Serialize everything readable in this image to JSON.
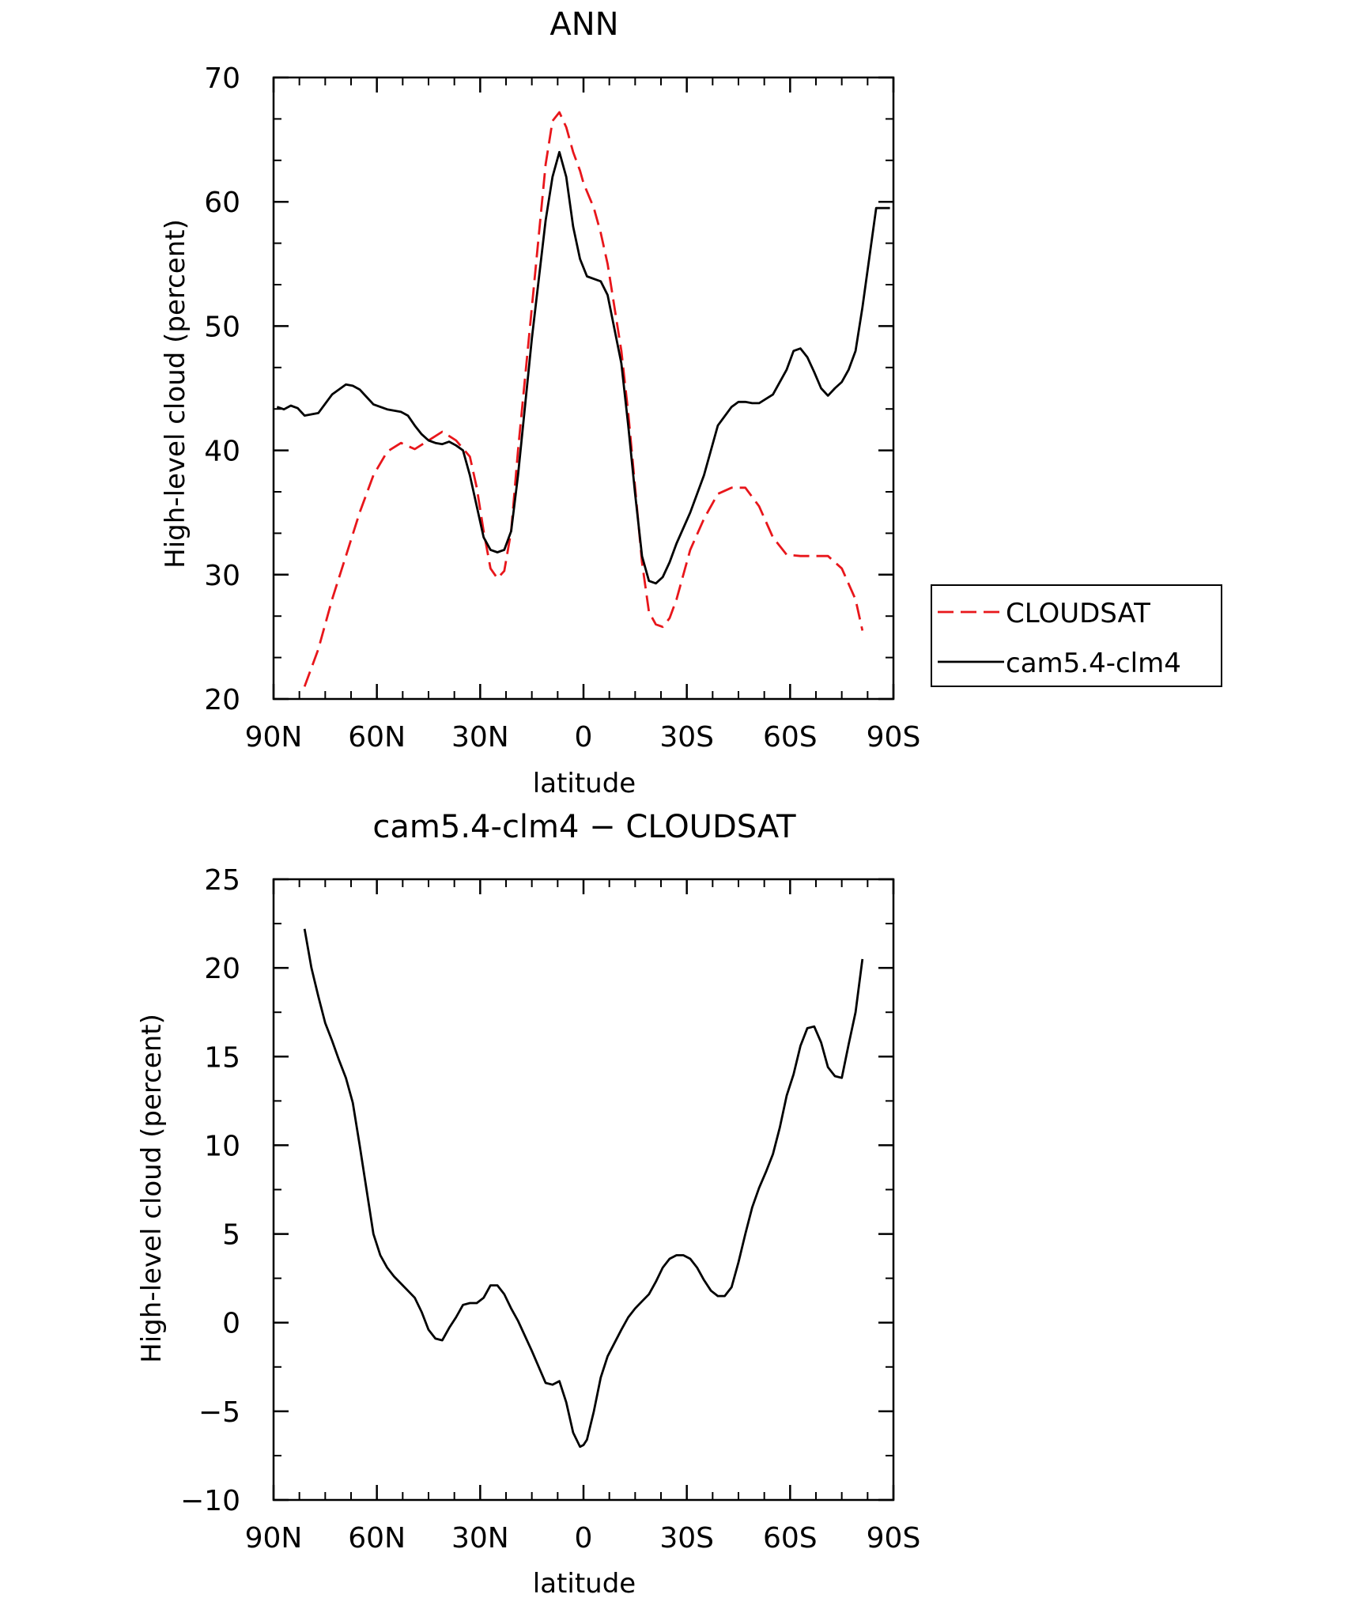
{
  "chart_data": [
    {
      "type": "line",
      "title": "ANN",
      "xlabel": "latitude",
      "ylabel": "High-level cloud (percent)",
      "xlim": [
        90,
        -90
      ],
      "ylim": [
        20,
        70
      ],
      "xtick_values": [
        90,
        60,
        30,
        0,
        -30,
        -60,
        -90
      ],
      "xtick_labels": [
        "90N",
        "60N",
        "30N",
        "0",
        "30S",
        "60S",
        "90S"
      ],
      "ytick_values": [
        20,
        30,
        40,
        50,
        60,
        70
      ],
      "ytick_labels": [
        "20",
        "30",
        "40",
        "50",
        "60",
        "70"
      ],
      "legend_position": "right",
      "series": [
        {
          "name": "CLOUDSAT",
          "color": "#e8161b",
          "dash": "dashed",
          "x": [
            81,
            77,
            73,
            69,
            65,
            61,
            57,
            53,
            49,
            45,
            41,
            37,
            33,
            31,
            29,
            27,
            25,
            23,
            21,
            19,
            15,
            11,
            9,
            7,
            5,
            3,
            1,
            0,
            -3,
            -5,
            -7,
            -11,
            -13,
            -15,
            -17,
            -19,
            -21,
            -23,
            -25,
            -27,
            -31,
            -35,
            -39,
            -43,
            -47,
            -51,
            -55,
            -59,
            -63,
            -67,
            -71,
            -75,
            -79,
            -81
          ],
          "y": [
            21.0,
            24.0,
            28.0,
            31.5,
            35.0,
            38.0,
            39.9,
            40.6,
            40.1,
            40.8,
            41.5,
            40.8,
            39.5,
            37.0,
            33.5,
            30.5,
            29.7,
            30.3,
            33.5,
            40.0,
            51.5,
            63.0,
            66.5,
            67.2,
            66.0,
            64.0,
            62.5,
            61.5,
            59.5,
            57.5,
            55.0,
            48.0,
            43.0,
            37.0,
            31.0,
            27.0,
            26.0,
            25.8,
            26.5,
            28.0,
            32.0,
            34.5,
            36.5,
            37.0,
            37.0,
            35.5,
            33.0,
            31.6,
            31.5,
            31.5,
            31.5,
            30.5,
            28.0,
            25.5
          ]
        },
        {
          "name": "cam5.4-clm4",
          "color": "#000000",
          "dash": "solid",
          "x": [
            89,
            87,
            85,
            83,
            81,
            79,
            77,
            73,
            69,
            67,
            65,
            63,
            61,
            59,
            57,
            53,
            51,
            49,
            47,
            45,
            43,
            41,
            39,
            37,
            35,
            33,
            31,
            29,
            27,
            25,
            23,
            21,
            19,
            15,
            11,
            9,
            7,
            5,
            3,
            1,
            -1,
            -3,
            -5,
            -7,
            -11,
            -13,
            -15,
            -17,
            -19,
            -21,
            -23,
            -25,
            -27,
            -31,
            -35,
            -39,
            -43,
            -45,
            -47,
            -49,
            -51,
            -55,
            -59,
            -61,
            -63,
            -65,
            -67,
            -69,
            -71,
            -73,
            -75,
            -77,
            -79,
            -81,
            -83,
            -85,
            -87,
            -89
          ],
          "y": [
            43.5,
            43.3,
            43.6,
            43.4,
            42.8,
            42.9,
            43.0,
            44.5,
            45.3,
            45.2,
            44.9,
            44.3,
            43.7,
            43.5,
            43.3,
            43.1,
            42.8,
            42.0,
            41.3,
            40.8,
            40.6,
            40.5,
            40.7,
            40.4,
            40.0,
            38.0,
            35.5,
            33.0,
            32.0,
            31.8,
            32.0,
            33.5,
            38.0,
            49.0,
            58.5,
            62.0,
            64.0,
            62.0,
            58.0,
            55.4,
            54.0,
            53.8,
            53.6,
            52.5,
            47.0,
            42.0,
            36.5,
            31.5,
            29.5,
            29.3,
            29.8,
            31.0,
            32.5,
            35.0,
            38.0,
            42.0,
            43.5,
            43.9,
            43.9,
            43.8,
            43.8,
            44.5,
            46.5,
            48.0,
            48.2,
            47.5,
            46.3,
            45.0,
            44.4,
            45.0,
            45.5,
            46.5,
            48.0,
            51.5,
            55.5,
            59.5,
            59.5,
            59.5
          ]
        }
      ]
    },
    {
      "type": "line",
      "title": "cam5.4-clm4 − CLOUDSAT",
      "xlabel": "latitude",
      "ylabel": "High-level cloud (percent)",
      "xlim": [
        90,
        -90
      ],
      "ylim": [
        -10,
        25
      ],
      "xtick_values": [
        90,
        60,
        30,
        0,
        -30,
        -60,
        -90
      ],
      "xtick_labels": [
        "90N",
        "60N",
        "30N",
        "0",
        "30S",
        "60S",
        "90S"
      ],
      "ytick_values": [
        -10,
        -5,
        0,
        5,
        10,
        15,
        20,
        25
      ],
      "ytick_labels": [
        "−10",
        "−5",
        "0",
        "5",
        "10",
        "15",
        "20",
        "25"
      ],
      "series": [
        {
          "name": "cam5.4-clm4 − CLOUDSAT",
          "color": "#000000",
          "dash": "solid",
          "x": [
            81,
            79,
            77,
            75,
            73,
            71,
            69,
            67,
            65,
            63,
            61,
            59,
            57,
            55,
            53,
            51,
            49,
            47,
            45,
            43,
            41,
            39,
            37,
            35,
            33,
            31,
            29,
            27,
            25,
            23,
            21,
            19,
            15,
            11,
            9,
            7,
            5,
            3,
            1,
            0,
            -1,
            -3,
            -5,
            -7,
            -11,
            -13,
            -15,
            -17,
            -19,
            -21,
            -23,
            -25,
            -27,
            -29,
            -31,
            -33,
            -35,
            -37,
            -39,
            -41,
            -43,
            -45,
            -47,
            -49,
            -51,
            -53,
            -55,
            -57,
            -59,
            -61,
            -63,
            -65,
            -67,
            -69,
            -71,
            -73,
            -75,
            -77,
            -79,
            -81
          ],
          "y": [
            22.2,
            20.0,
            18.4,
            16.9,
            15.9,
            14.8,
            13.8,
            12.4,
            10.0,
            7.5,
            5.0,
            3.8,
            3.1,
            2.6,
            2.2,
            1.8,
            1.4,
            0.6,
            -0.4,
            -0.9,
            -1.0,
            -0.3,
            0.3,
            1.0,
            1.1,
            1.1,
            1.4,
            2.1,
            2.1,
            1.6,
            0.8,
            0.1,
            -1.6,
            -3.4,
            -3.5,
            -3.3,
            -4.5,
            -6.2,
            -7.0,
            -6.9,
            -6.6,
            -5.0,
            -3.1,
            -1.9,
            -0.4,
            0.3,
            0.8,
            1.2,
            1.6,
            2.3,
            3.1,
            3.6,
            3.8,
            3.8,
            3.6,
            3.1,
            2.4,
            1.8,
            1.5,
            1.5,
            2.0,
            3.4,
            5.0,
            6.5,
            7.6,
            8.5,
            9.5,
            11.0,
            12.8,
            14.0,
            15.6,
            16.6,
            16.7,
            15.8,
            14.4,
            13.9,
            13.8,
            15.7,
            17.5,
            20.5
          ]
        }
      ]
    }
  ]
}
